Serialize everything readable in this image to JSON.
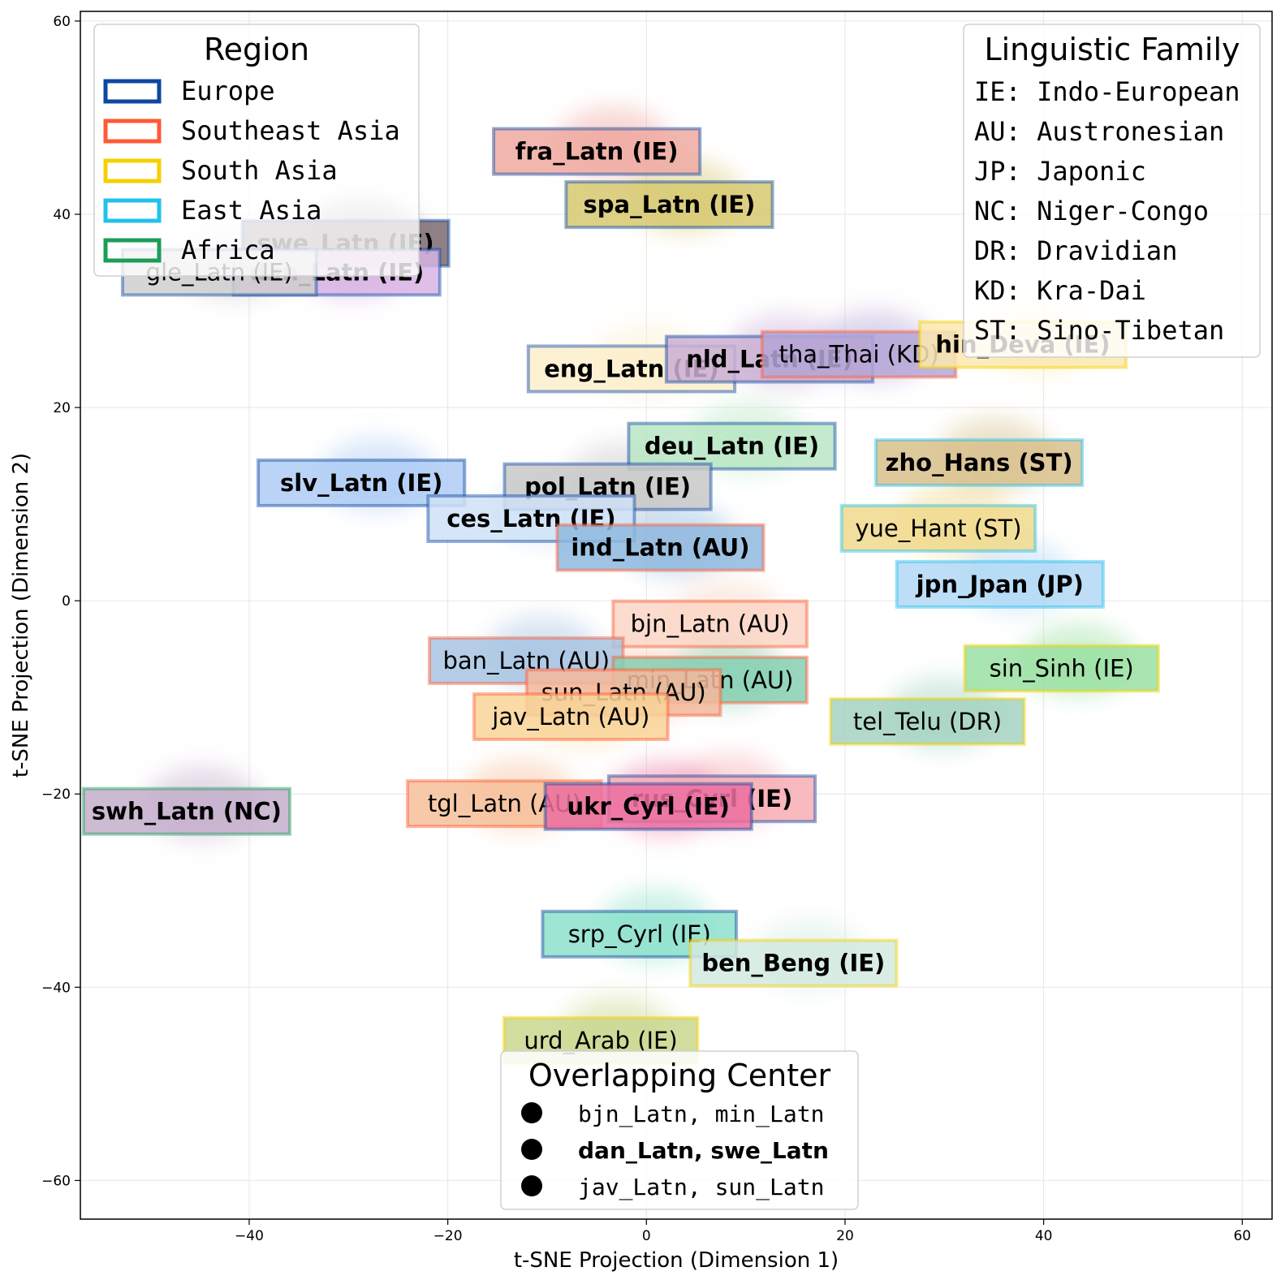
{
  "chart_data": {
    "type": "scatter",
    "xlabel": "t-SNE Projection (Dimension 1)",
    "ylabel": "t-SNE Projection (Dimension 2)",
    "xlim": [
      -57,
      63
    ],
    "ylim": [
      -64,
      61
    ],
    "x_ticks": [
      -40,
      -20,
      0,
      20,
      40,
      60
    ],
    "y_ticks": [
      -60,
      -40,
      -20,
      0,
      20,
      40,
      60
    ],
    "x_tick_labels": [
      "−40",
      "−20",
      "0",
      "20",
      "40",
      "60"
    ],
    "y_tick_labels": [
      "−60",
      "−40",
      "−20",
      "0",
      "20",
      "40",
      "60"
    ],
    "grid": true,
    "region_colors": {
      "Europe": "#0d47a1",
      "Southeast Asia": "#ff5a36",
      "South Asia": "#f5d000",
      "East Asia": "#21c1ee",
      "Africa": "#1b9e57"
    },
    "languages": [
      {
        "label": "fra_Latn (IE)",
        "region": "Europe",
        "x": -5.0,
        "y": 46.5,
        "fill": "#eea9a0",
        "bold": true
      },
      {
        "label": "spa_Latn (IE)",
        "region": "Europe",
        "x": 2.3,
        "y": 41.0,
        "fill": "#d6c870",
        "bold": true
      },
      {
        "label": "swe_Latn (IE)",
        "region": "Europe",
        "x": -30.3,
        "y": 37.0,
        "fill": "#7a6a70",
        "bold": true
      },
      {
        "label": "dan_Latn (IE)",
        "region": "Europe",
        "x": -31.2,
        "y": 34.0,
        "fill": "#d8b4e4",
        "bold": true
      },
      {
        "label": "gle_Latn (IE)",
        "region": "Europe",
        "x": -43.0,
        "y": 34.0,
        "fill": "#cfcfcf",
        "bold": false
      },
      {
        "label": "eng_Latn (IE)",
        "region": "Europe",
        "x": -1.5,
        "y": 24.0,
        "fill": "#fbeecb",
        "bold": true
      },
      {
        "label": "nld_Latn (IE)",
        "region": "Europe",
        "x": 12.4,
        "y": 25.0,
        "fill": "#cbb0d4",
        "bold": true
      },
      {
        "label": "tha_Thai (KD)",
        "region": "Southeast Asia",
        "x": 21.4,
        "y": 25.5,
        "fill": "#b5a6d6",
        "bold": false
      },
      {
        "label": "hin_Deva (IE)",
        "region": "South Asia",
        "x": 37.9,
        "y": 26.5,
        "fill": "#fbe9b0",
        "bold": true
      },
      {
        "label": "deu_Latn (IE)",
        "region": "Europe",
        "x": 8.6,
        "y": 16.0,
        "fill": "#b8e6c4",
        "bold": true
      },
      {
        "label": "zho_Hans (ST)",
        "region": "East Asia",
        "x": 33.5,
        "y": 14.3,
        "fill": "#d8c08c",
        "bold": true
      },
      {
        "label": "slv_Latn (IE)",
        "region": "Europe",
        "x": -28.7,
        "y": 12.2,
        "fill": "#aecbf5",
        "bold": true
      },
      {
        "label": "pol_Latn (IE)",
        "region": "Europe",
        "x": -3.9,
        "y": 11.8,
        "fill": "#c8c8c8",
        "bold": true
      },
      {
        "label": "ces_Latn (IE)",
        "region": "Europe",
        "x": -11.6,
        "y": 8.5,
        "fill": "#cfe2f7",
        "bold": true
      },
      {
        "label": "yue_Hant (ST)",
        "region": "East Asia",
        "x": 29.4,
        "y": 7.5,
        "fill": "#f0d98c",
        "bold": false
      },
      {
        "label": "ind_Latn (AU)",
        "region": "Southeast Asia",
        "x": 1.4,
        "y": 5.5,
        "fill": "#8fb8de",
        "bold": true
      },
      {
        "label": "jpn_Jpan (JP)",
        "region": "East Asia",
        "x": 35.6,
        "y": 1.7,
        "fill": "#b2d8f5",
        "bold": true
      },
      {
        "label": "bjn_Latn (AU)",
        "region": "Southeast Asia",
        "x": 6.4,
        "y": -2.4,
        "fill": "#fbd6c6",
        "bold": false
      },
      {
        "label": "ban_Latn (AU)",
        "region": "Southeast Asia",
        "x": -12.1,
        "y": -6.2,
        "fill": "#a8c4e2",
        "bold": false
      },
      {
        "label": "min_Latn (AU)",
        "region": "Southeast Asia",
        "x": 6.4,
        "y": -8.2,
        "fill": "#86cfb2",
        "bold": false
      },
      {
        "label": "sin_Sinh (IE)",
        "region": "South Asia",
        "x": 41.8,
        "y": -7.0,
        "fill": "#9ae0a2",
        "bold": false
      },
      {
        "label": "sun_Latn (AU)",
        "region": "Southeast Asia",
        "x": -2.3,
        "y": -9.5,
        "fill": "#f4b89c",
        "bold": false
      },
      {
        "label": "jav_Latn (AU)",
        "region": "Southeast Asia",
        "x": -7.6,
        "y": -12.0,
        "fill": "#f9d498",
        "bold": false
      },
      {
        "label": "tel_Telu (DR)",
        "region": "South Asia",
        "x": 28.3,
        "y": -12.5,
        "fill": "#a4d2c0",
        "bold": false
      },
      {
        "label": "rus_Cyrl (IE)",
        "region": "Europe",
        "x": 6.6,
        "y": -20.5,
        "fill": "#f7aeb4",
        "bold": true
      },
      {
        "label": "tgl_Latn (AU)",
        "region": "Southeast Asia",
        "x": -14.3,
        "y": -21.0,
        "fill": "#f6c09a",
        "bold": false
      },
      {
        "label": "ukr_Cyrl (IE)",
        "region": "Europe",
        "x": 0.2,
        "y": -21.3,
        "fill": "#ec6fa0",
        "bold": true
      },
      {
        "label": "swh_Latn (NC)",
        "region": "Africa",
        "x": -46.3,
        "y": -21.8,
        "fill": "#c4aecb",
        "bold": true
      },
      {
        "label": "srp_Cyrl (IE)",
        "region": "Europe",
        "x": -0.7,
        "y": -34.5,
        "fill": "#8de0cc",
        "bold": false
      },
      {
        "label": "ben_Beng (IE)",
        "region": "South Asia",
        "x": 14.8,
        "y": -37.5,
        "fill": "#d2eadf",
        "bold": true
      },
      {
        "label": "urd_Arab (IE)",
        "region": "South Asia",
        "x": -4.6,
        "y": -45.5,
        "fill": "#c9d78e",
        "bold": false
      }
    ],
    "legend_region": {
      "title": "Region",
      "position": "top-left",
      "entries": [
        "Europe",
        "Southeast Asia",
        "South Asia",
        "East Asia",
        "Africa"
      ]
    },
    "legend_family": {
      "title": "Linguistic Family",
      "position": "top-right",
      "entries": [
        "IE: Indo-European",
        "AU: Austronesian",
        "JP: Japonic",
        "NC: Niger-Congo",
        "DR: Dravidian",
        "KD: Kra-Dai",
        "ST: Sino-Tibetan"
      ]
    },
    "legend_overlap": {
      "title": "Overlapping Center",
      "position": "bottom-center",
      "entries": [
        {
          "a": "bjn_Latn",
          "b": "min_Latn",
          "bold": false
        },
        {
          "a": "dan_Latn",
          "b": "swe_Latn",
          "bold": true
        },
        {
          "a": "jav_Latn",
          "b": "sun_Latn",
          "bold": false
        }
      ]
    }
  }
}
